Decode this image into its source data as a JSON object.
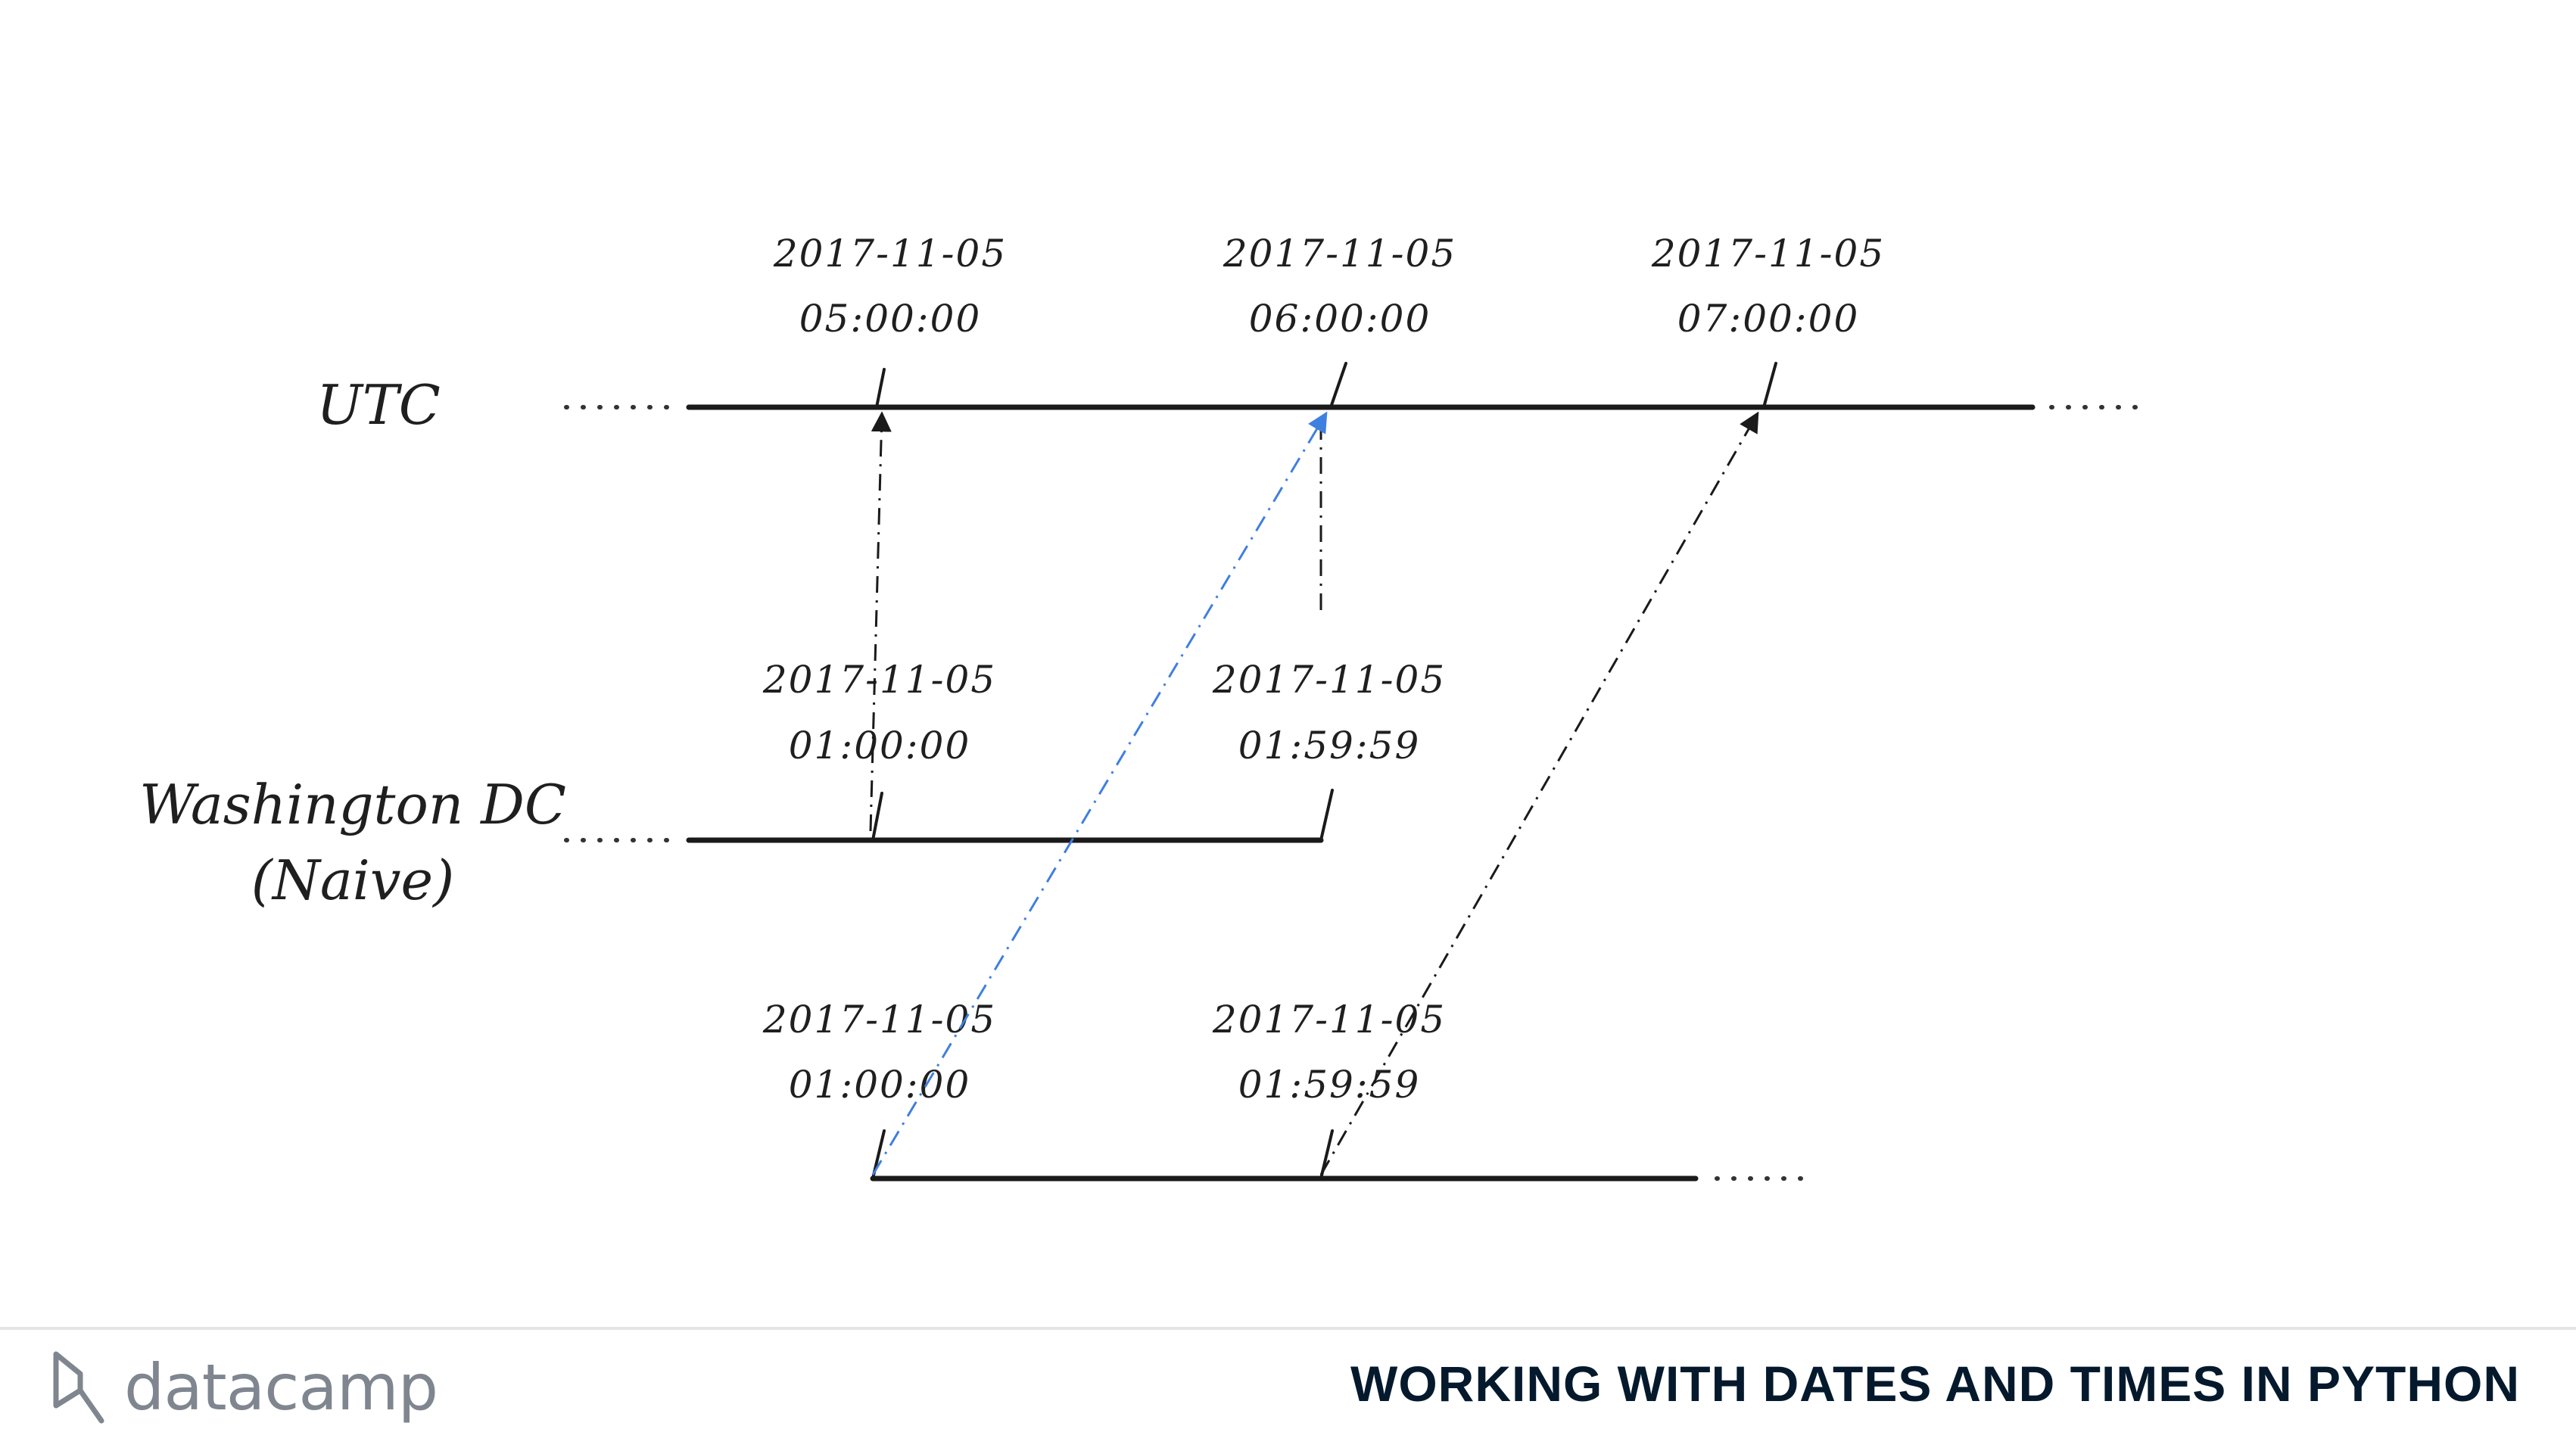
{
  "rows": {
    "utc": {
      "label": "UTC"
    },
    "naive": {
      "label_line1": "Washington DC",
      "label_line2": "(Naive)"
    },
    "aware": {
      "label": ""
    }
  },
  "utc_ticks": [
    {
      "date": "2017-11-05",
      "time": "05:00:00"
    },
    {
      "date": "2017-11-05",
      "time": "06:00:00"
    },
    {
      "date": "2017-11-05",
      "time": "07:00:00"
    }
  ],
  "naive_ticks": [
    {
      "date": "2017-11-05",
      "time": "01:00:00"
    },
    {
      "date": "2017-11-05",
      "time": "01:59:59"
    }
  ],
  "aware_ticks": [
    {
      "date": "2017-11-05",
      "time": "01:00:00"
    },
    {
      "date": "2017-11-05",
      "time": "01:59:59"
    }
  ],
  "colors": {
    "ink": "#1a1a1a",
    "highlight": "#3f7fe0",
    "footer_title": "#05192d",
    "logo": "#7f8690"
  },
  "footer": {
    "brand": "datacamp",
    "course_title": "WORKING WITH DATES AND TIMES IN PYTHON"
  }
}
